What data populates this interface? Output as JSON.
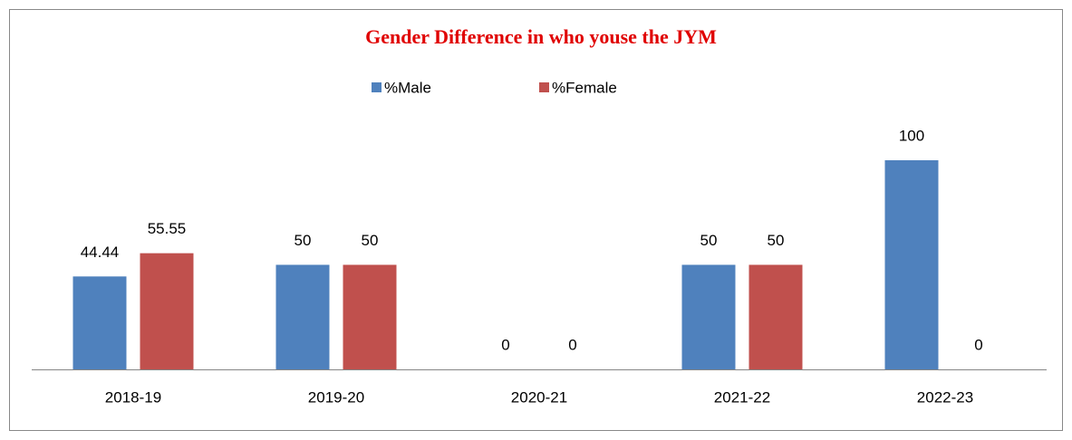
{
  "chart_data": {
    "type": "bar",
    "title": "Gender Difference in who youse the JYM",
    "categories": [
      "2018-19",
      "2019-20",
      "2020-21",
      "2021-22",
      "2022-23"
    ],
    "series": [
      {
        "name": "%Male",
        "color": "#4f81bd",
        "values": [
          44.44,
          50,
          0,
          50,
          100
        ]
      },
      {
        "name": "%Female",
        "color": "#c0504d",
        "values": [
          55.55,
          50,
          0,
          50,
          0
        ]
      }
    ],
    "ylim": [
      0,
      100
    ],
    "legend": "top",
    "data_labels": true
  }
}
